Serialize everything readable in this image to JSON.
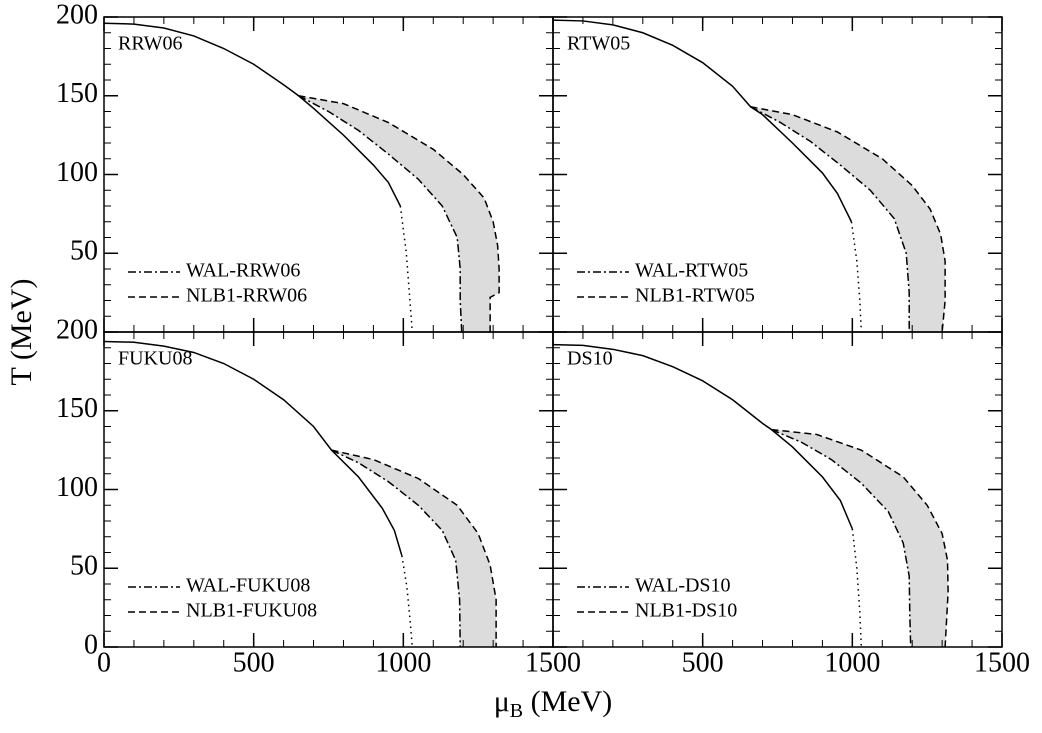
{
  "axis_labels": {
    "y": "T (MeV)",
    "x": [
      "μ",
      "B",
      " (MeV)"
    ]
  },
  "chart_data": [
    {
      "type": "line",
      "annotation": "RRW06",
      "xlim": [
        0,
        1500
      ],
      "ylim": [
        0,
        200
      ],
      "yticks": [
        50,
        100,
        150,
        200
      ],
      "legend": "lower left",
      "band_color": "#dcdcdc",
      "series": [
        {
          "color": "#000000",
          "dash": "solid",
          "x": [
            0,
            100,
            200,
            300,
            400,
            500,
            600,
            650,
            700,
            800,
            900,
            950,
            990
          ],
          "values": [
            196,
            195.5,
            193,
            188,
            180,
            170,
            157,
            150,
            142,
            125,
            106,
            95,
            80
          ]
        },
        {
          "color": "#000000",
          "dash": "dotted",
          "x": [
            990,
            1010,
            1020,
            1030
          ],
          "values": [
            80,
            50,
            25,
            0
          ]
        },
        {
          "name": "WAL-RRW06",
          "color": "#000000",
          "dash": "dashdot",
          "band": "low",
          "x": [
            650,
            750,
            850,
            950,
            1050,
            1130,
            1180,
            1190,
            1190,
            1195
          ],
          "values": [
            150,
            140,
            128,
            113,
            97,
            80,
            60,
            40,
            20,
            0
          ]
        },
        {
          "name": "NLB1-RRW06",
          "color": "#000000",
          "dash": "dashed",
          "band": "high",
          "x": [
            650,
            800,
            950,
            1100,
            1200,
            1270,
            1300,
            1315,
            1320,
            1320,
            1290,
            1290
          ],
          "values": [
            150,
            145,
            133,
            116,
            100,
            85,
            70,
            55,
            40,
            25,
            22,
            0
          ]
        }
      ]
    },
    {
      "type": "line",
      "annotation": "RTW05",
      "xlim": [
        0,
        1500
      ],
      "ylim": [
        0,
        200
      ],
      "legend": "lower left",
      "band_color": "#dcdcdc",
      "series": [
        {
          "color": "#000000",
          "dash": "solid",
          "x": [
            0,
            100,
            200,
            300,
            400,
            500,
            600,
            660,
            700,
            800,
            900,
            950,
            997
          ],
          "values": [
            198,
            197.5,
            195,
            190,
            182,
            171,
            156,
            143,
            138,
            120,
            101,
            88,
            70
          ]
        },
        {
          "color": "#000000",
          "dash": "dotted",
          "x": [
            997,
            1015,
            1025,
            1030
          ],
          "values": [
            70,
            45,
            20,
            0
          ]
        },
        {
          "name": "WAL-RTW05",
          "color": "#000000",
          "dash": "dashdot",
          "band": "low",
          "x": [
            660,
            760,
            860,
            960,
            1060,
            1140,
            1180,
            1190,
            1190
          ],
          "values": [
            143,
            133,
            121,
            106,
            90,
            72,
            50,
            25,
            0
          ]
        },
        {
          "name": "NLB1-RTW05",
          "color": "#000000",
          "dash": "dashed",
          "band": "high",
          "x": [
            660,
            800,
            950,
            1100,
            1200,
            1260,
            1295,
            1310,
            1310,
            1300
          ],
          "values": [
            143,
            138,
            127,
            110,
            93,
            78,
            62,
            45,
            20,
            0
          ]
        }
      ]
    },
    {
      "type": "line",
      "annotation": "FUKU08",
      "xlim": [
        0,
        1500
      ],
      "ylim": [
        0,
        200
      ],
      "xticks": [
        0,
        500,
        1000,
        1500
      ],
      "yticks": [
        0,
        50,
        100,
        150,
        200
      ],
      "legend": "lower left",
      "band_color": "#dcdcdc",
      "series": [
        {
          "color": "#000000",
          "dash": "solid",
          "x": [
            0,
            100,
            200,
            300,
            400,
            500,
            600,
            700,
            760,
            850,
            930,
            970,
            995
          ],
          "values": [
            194,
            193.5,
            191,
            187,
            180,
            170,
            157,
            140,
            125,
            108,
            88,
            74,
            58
          ]
        },
        {
          "color": "#000000",
          "dash": "dotted",
          "x": [
            995,
            1012,
            1022,
            1030
          ],
          "values": [
            58,
            38,
            18,
            0
          ]
        },
        {
          "name": "WAL-FUKU08",
          "color": "#000000",
          "dash": "dashdot",
          "band": "low",
          "x": [
            760,
            850,
            950,
            1050,
            1130,
            1175,
            1188,
            1190
          ],
          "values": [
            125,
            117,
            105,
            90,
            74,
            55,
            30,
            0
          ]
        },
        {
          "name": "NLB1-FUKU08",
          "color": "#000000",
          "dash": "dashed",
          "band": "high",
          "x": [
            760,
            900,
            1050,
            1180,
            1250,
            1290,
            1310,
            1310
          ],
          "values": [
            125,
            119,
            107,
            90,
            72,
            52,
            30,
            0
          ]
        }
      ]
    },
    {
      "type": "line",
      "annotation": "DS10",
      "xlim": [
        0,
        1500
      ],
      "ylim": [
        0,
        200
      ],
      "xticks": [
        500,
        1000,
        1500
      ],
      "legend": "lower left",
      "band_color": "#dcdcdc",
      "series": [
        {
          "color": "#000000",
          "dash": "solid",
          "x": [
            0,
            100,
            200,
            300,
            400,
            500,
            600,
            700,
            730,
            800,
            900,
            960,
            1000
          ],
          "values": [
            192,
            191.5,
            189,
            185,
            178,
            169,
            157,
            142,
            138,
            127,
            108,
            93,
            75
          ]
        },
        {
          "color": "#000000",
          "dash": "dotted",
          "x": [
            1000,
            1015,
            1025,
            1030
          ],
          "values": [
            75,
            50,
            22,
            0
          ]
        },
        {
          "name": "WAL-DS10",
          "color": "#000000",
          "dash": "dashdot",
          "band": "low",
          "x": [
            730,
            830,
            930,
            1030,
            1120,
            1170,
            1190,
            1192,
            1195
          ],
          "values": [
            138,
            130,
            119,
            104,
            86,
            66,
            45,
            20,
            0
          ]
        },
        {
          "name": "NLB1-DS10",
          "color": "#000000",
          "dash": "dashed",
          "band": "high",
          "x": [
            730,
            880,
            1030,
            1170,
            1250,
            1300,
            1318,
            1320,
            1310
          ],
          "values": [
            138,
            135,
            125,
            108,
            90,
            72,
            55,
            35,
            0
          ]
        }
      ]
    }
  ]
}
